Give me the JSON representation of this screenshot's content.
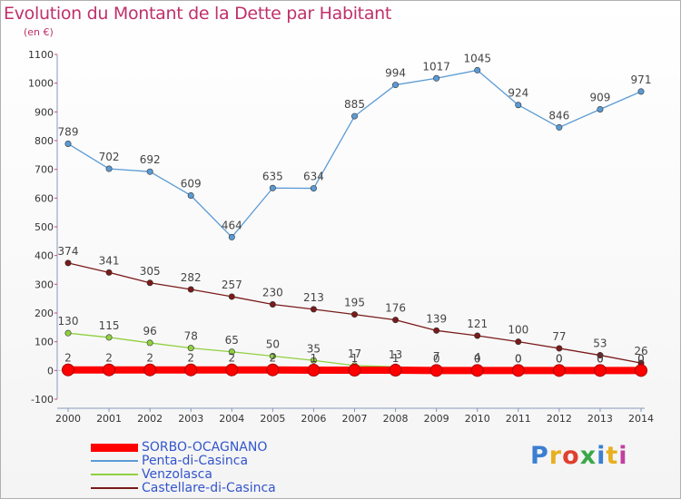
{
  "title": "Evolution du Montant de la Dette par Habitant",
  "unit": "(en €)",
  "logo": {
    "text": "Proxiti",
    "colors": [
      "#3a7fd1",
      "#e8b020",
      "#e04030",
      "#3aa84a",
      "#3a7fd1",
      "#e8b020",
      "#c040a0"
    ]
  },
  "chart_data": {
    "type": "line",
    "title": "Evolution du Montant de la Dette par Habitant",
    "ylabel": "(en €)",
    "x": [
      "2000",
      "2001",
      "2002",
      "2003",
      "2004",
      "2005",
      "2006",
      "2007",
      "2008",
      "2009",
      "2010",
      "2011",
      "2012",
      "2013",
      "2014"
    ],
    "ylim": [
      -100,
      1100
    ],
    "yticks": [
      -100,
      0,
      100,
      200,
      300,
      400,
      500,
      600,
      700,
      800,
      900,
      1000,
      1100
    ],
    "grid": false,
    "legend": "bottom-left",
    "series": [
      {
        "name": "SORBO-OCAGNANO",
        "color": "#ff0000",
        "values": [
          2,
          2,
          2,
          2,
          2,
          2,
          1,
          1,
          1,
          0,
          0,
          0,
          0,
          0,
          0
        ],
        "labels": [
          "2",
          "2",
          "2",
          "2",
          "2",
          "2",
          "1",
          "1",
          "1",
          "0",
          "0",
          "0",
          "0",
          "0",
          "0"
        ]
      },
      {
        "name": "Penta-di-Casinca",
        "color": "#5b9bd5",
        "values": [
          789,
          702,
          692,
          609,
          464,
          635,
          634,
          885,
          994,
          1017,
          1045,
          924,
          846,
          909,
          971
        ],
        "labels": [
          "789",
          "702",
          "692",
          "609",
          "464",
          "635",
          "634",
          "885",
          "994",
          "1017",
          "1045",
          "924",
          "846",
          "909",
          "971"
        ]
      },
      {
        "name": "Venzolasca",
        "color": "#90d040",
        "values": [
          130,
          115,
          96,
          78,
          65,
          50,
          35,
          17,
          13,
          7,
          4,
          0,
          0,
          0,
          0
        ],
        "labels": [
          "130",
          "115",
          "96",
          "78",
          "65",
          "50",
          "35",
          "17",
          "13",
          "7",
          "4",
          "0",
          "0",
          "0",
          "0"
        ]
      },
      {
        "name": "Castellare-di-Casinca",
        "color": "#7a1a1a",
        "values": [
          374,
          341,
          305,
          282,
          257,
          230,
          213,
          195,
          176,
          139,
          121,
          100,
          77,
          53,
          26
        ],
        "labels": [
          "374",
          "341",
          "305",
          "282",
          "257",
          "230",
          "213",
          "195",
          "176",
          "139",
          "121",
          "100",
          "77",
          "53",
          "26"
        ]
      }
    ]
  }
}
